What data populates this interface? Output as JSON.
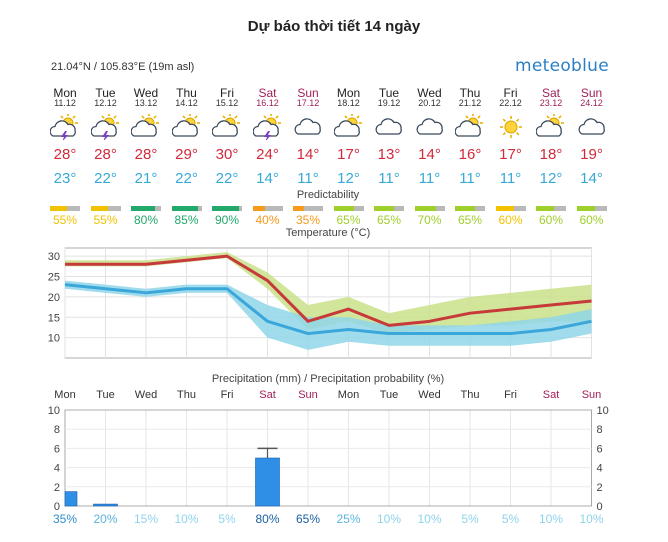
{
  "page": {
    "title": "Dự báo thời tiết 14 ngày"
  },
  "widget": {
    "location": "21.04°N / 105.83°E (19m asl)",
    "brand": "meteoblue"
  },
  "days": [
    {
      "name": "Mon",
      "date": "11.12",
      "weekend": false,
      "icon": "sun-cloud-thunder-icon",
      "tmax": "28°",
      "tmin": "23°",
      "pred": "55%",
      "predcolor": "#f2c200",
      "prec_prob": "35%"
    },
    {
      "name": "Tue",
      "date": "12.12",
      "weekend": false,
      "icon": "sun-cloud-thunder-icon",
      "tmax": "28°",
      "tmin": "22°",
      "pred": "55%",
      "predcolor": "#f2c200",
      "prec_prob": "20%"
    },
    {
      "name": "Wed",
      "date": "13.12",
      "weekend": false,
      "icon": "sun-cloud-icon",
      "tmax": "28°",
      "tmin": "21°",
      "pred": "80%",
      "predcolor": "#21a86a",
      "prec_prob": "15%"
    },
    {
      "name": "Thu",
      "date": "14.12",
      "weekend": false,
      "icon": "sun-cloud-icon",
      "tmax": "29°",
      "tmin": "22°",
      "pred": "85%",
      "predcolor": "#21a86a",
      "prec_prob": "10%"
    },
    {
      "name": "Fri",
      "date": "15.12",
      "weekend": false,
      "icon": "sun-cloud-icon",
      "tmax": "30°",
      "tmin": "22°",
      "pred": "90%",
      "predcolor": "#21a86a",
      "prec_prob": "5%"
    },
    {
      "name": "Sat",
      "date": "16.12",
      "weekend": true,
      "icon": "sun-cloud-thunder-icon",
      "tmax": "24°",
      "tmin": "14°",
      "pred": "40%",
      "predcolor": "#f59a1a",
      "prec_prob": "80%"
    },
    {
      "name": "Sun",
      "date": "17.12",
      "weekend": true,
      "icon": "cloud-icon",
      "tmax": "14°",
      "tmin": "11°",
      "pred": "35%",
      "predcolor": "#f59a1a",
      "prec_prob": "65%"
    },
    {
      "name": "Mon",
      "date": "18.12",
      "weekend": false,
      "icon": "sun-cloud-icon",
      "tmax": "17°",
      "tmin": "12°",
      "pred": "65%",
      "predcolor": "#9fcf2a",
      "prec_prob": "25%"
    },
    {
      "name": "Tue",
      "date": "19.12",
      "weekend": false,
      "icon": "cloud-icon",
      "tmax": "13°",
      "tmin": "11°",
      "pred": "65%",
      "predcolor": "#9fcf2a",
      "prec_prob": "10%"
    },
    {
      "name": "Wed",
      "date": "20.12",
      "weekend": false,
      "icon": "cloud-icon",
      "tmax": "14°",
      "tmin": "11°",
      "pred": "70%",
      "predcolor": "#9fcf2a",
      "prec_prob": "10%"
    },
    {
      "name": "Thu",
      "date": "21.12",
      "weekend": false,
      "icon": "sun-cloud-icon",
      "tmax": "16°",
      "tmin": "11°",
      "pred": "65%",
      "predcolor": "#9fcf2a",
      "prec_prob": "5%"
    },
    {
      "name": "Fri",
      "date": "22.12",
      "weekend": false,
      "icon": "sun-icon",
      "tmax": "17°",
      "tmin": "11°",
      "pred": "60%",
      "predcolor": "#f2c200",
      "prec_prob": "5%"
    },
    {
      "name": "Sat",
      "date": "23.12",
      "weekend": true,
      "icon": "sun-cloud-icon",
      "tmax": "18°",
      "tmin": "12°",
      "pred": "60%",
      "predcolor": "#9fcf2a",
      "prec_prob": "10%"
    },
    {
      "name": "Sun",
      "date": "24.12",
      "weekend": true,
      "icon": "cloud-icon",
      "tmax": "19°",
      "tmin": "14°",
      "pred": "60%",
      "predcolor": "#9fcf2a",
      "prec_prob": "10%"
    }
  ],
  "labels": {
    "predictability": "Predictability",
    "temperature": "Temperature (°C)",
    "precipitation": "Precipitation (mm) / Precipitation probability (%)"
  },
  "chart_data": [
    {
      "type": "area",
      "title": "Temperature (°C)",
      "ylim": [
        5,
        32
      ],
      "yticks": [
        10,
        15,
        20,
        25,
        30
      ],
      "categories": [
        "Mon",
        "Tue",
        "Wed",
        "Thu",
        "Fri",
        "Sat",
        "Sun",
        "Mon",
        "Tue",
        "Wed",
        "Thu",
        "Fri",
        "Sat",
        "Sun"
      ],
      "series": [
        {
          "name": "max",
          "values": [
            28,
            28,
            28,
            29,
            30,
            24,
            14,
            17,
            13,
            14,
            16,
            17,
            18,
            19
          ],
          "color": "#c73a3a"
        },
        {
          "name": "min",
          "values": [
            23,
            22,
            21,
            22,
            22,
            14,
            11,
            12,
            11,
            11,
            11,
            11,
            12,
            14
          ],
          "color": "#3aa6da"
        },
        {
          "name": "max_range",
          "low": [
            27.5,
            27.5,
            27.5,
            28.5,
            29.5,
            22,
            12,
            14,
            11,
            12,
            13,
            13,
            14,
            14
          ],
          "high": [
            29,
            29,
            29,
            30,
            31,
            26,
            18,
            20,
            16,
            18,
            20,
            21,
            22,
            23
          ],
          "color": "#c9e08a"
        },
        {
          "name": "min_range",
          "low": [
            22,
            21,
            20,
            21,
            21,
            10,
            7,
            9,
            8,
            8,
            8,
            8,
            9,
            11
          ],
          "high": [
            24,
            23,
            22,
            23,
            23,
            18,
            15,
            15,
            13,
            13,
            13,
            14,
            15,
            17
          ],
          "color": "#8fd6e8"
        }
      ],
      "grid": true
    },
    {
      "type": "bar",
      "title": "Precipitation (mm) / Precipitation probability (%)",
      "ylim": [
        0,
        10
      ],
      "yticks": [
        0,
        2,
        4,
        6,
        8,
        10
      ],
      "categories": [
        "Mon",
        "Tue",
        "Wed",
        "Thu",
        "Fri",
        "Sat",
        "Sun",
        "Mon",
        "Tue",
        "Wed",
        "Thu",
        "Fri",
        "Sat",
        "Sun"
      ],
      "values": [
        1.5,
        0.2,
        0,
        0,
        0,
        5,
        0,
        0,
        0,
        0,
        0,
        0,
        0,
        0
      ],
      "max_values": [
        1.5,
        0.2,
        0,
        0,
        0,
        6,
        0,
        0,
        0,
        0,
        0,
        0,
        0,
        0
      ],
      "probability": [
        35,
        20,
        15,
        10,
        5,
        80,
        65,
        25,
        10,
        10,
        5,
        5,
        10,
        10
      ],
      "bar_color": "#2f8ee6",
      "grid": true
    }
  ]
}
